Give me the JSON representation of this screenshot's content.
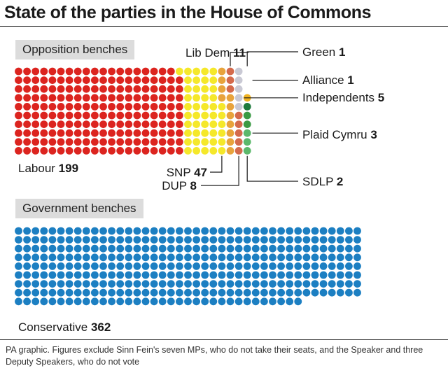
{
  "title": "State of the parties in the House of Commons",
  "chart_data": {
    "type": "waffle",
    "title": "State of the parties in the House of Commons",
    "groups": [
      {
        "label": "Opposition benches",
        "parties": [
          {
            "name": "Labour",
            "seats": 199,
            "color": "#dc241f"
          },
          {
            "name": "SNP",
            "seats": 47,
            "color": "#f5e82a"
          },
          {
            "name": "Lib Dem",
            "seats": 11,
            "color": "#e8a33c"
          },
          {
            "name": "DUP",
            "seats": 8,
            "color": "#d46a4c"
          },
          {
            "name": "Independents",
            "seats": 5,
            "color": "#c9c9d4"
          },
          {
            "name": "Plaid Cymru",
            "seats": 3,
            "color": "#5cb86b"
          },
          {
            "name": "SDLP",
            "seats": 2,
            "color": "#3b9a44"
          },
          {
            "name": "Green",
            "seats": 1,
            "color": "#1e7a3c"
          },
          {
            "name": "Alliance",
            "seats": 1,
            "color": "#f0b323"
          }
        ]
      },
      {
        "label": "Government benches",
        "parties": [
          {
            "name": "Conservative",
            "seats": 362,
            "color": "#1c7fc2"
          }
        ]
      }
    ]
  },
  "footer": "PA graphic. Figures exclude Sinn Fein's seven MPs, who do not take their seats, and the Speaker and three Deputy Speakers, who do not vote"
}
